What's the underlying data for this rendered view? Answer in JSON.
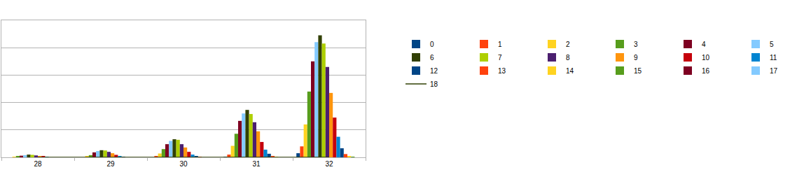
{
  "chart_data": {
    "type": "bar",
    "categories": [
      "28",
      "29",
      "30",
      "31",
      "32"
    ],
    "ylim": [
      0,
      5
    ],
    "yticks": [
      0,
      1,
      2,
      3,
      4,
      5
    ],
    "grid": true,
    "tick_labels": "x",
    "legend": "right",
    "series": [
      {
        "name": "0",
        "color": "#004586",
        "values": [
          0,
          0,
          0,
          0.01,
          0.15
        ]
      },
      {
        "name": "1",
        "color": "#ff420e",
        "values": [
          0,
          0,
          0.03,
          0.1,
          0.4
        ]
      },
      {
        "name": "2",
        "color": "#ffd320",
        "values": [
          0.02,
          0.03,
          0.14,
          0.42,
          1.2
        ]
      },
      {
        "name": "3",
        "color": "#579d1c",
        "values": [
          0.04,
          0.08,
          0.3,
          0.86,
          2.4
        ]
      },
      {
        "name": "4",
        "color": "#7e0021",
        "values": [
          0.06,
          0.18,
          0.48,
          1.33,
          3.5
        ]
      },
      {
        "name": "5",
        "color": "#83caff",
        "values": [
          0.08,
          0.23,
          0.6,
          1.6,
          4.2
        ]
      },
      {
        "name": "6",
        "color": "#314004",
        "values": [
          0.1,
          0.26,
          0.66,
          1.73,
          4.45
        ]
      },
      {
        "name": "7",
        "color": "#aecf00",
        "values": [
          0.09,
          0.25,
          0.64,
          1.58,
          4.15
        ]
      },
      {
        "name": "8",
        "color": "#4b1f6f",
        "values": [
          0.07,
          0.2,
          0.48,
          1.28,
          3.3
        ]
      },
      {
        "name": "9",
        "color": "#ff950e",
        "values": [
          0.05,
          0.15,
          0.36,
          0.95,
          2.35
        ]
      },
      {
        "name": "10",
        "color": "#c5000b",
        "values": [
          0.03,
          0.09,
          0.2,
          0.56,
          1.45
        ]
      },
      {
        "name": "11",
        "color": "#0084d1",
        "values": [
          0.01,
          0.04,
          0.1,
          0.28,
          0.75
        ]
      },
      {
        "name": "12",
        "color": "#004586",
        "values": [
          0,
          0.02,
          0.05,
          0.13,
          0.33
        ]
      },
      {
        "name": "13",
        "color": "#ff420e",
        "values": [
          0,
          0,
          0.02,
          0.04,
          0.12
        ]
      },
      {
        "name": "14",
        "color": "#ffd320",
        "values": [
          0,
          0,
          0,
          0.01,
          0.03
        ]
      },
      {
        "name": "15",
        "color": "#579d1c",
        "values": [
          0,
          0,
          0,
          0,
          0.01
        ]
      },
      {
        "name": "16",
        "color": "#7e0021",
        "values": [
          0,
          0,
          0,
          0,
          0
        ]
      },
      {
        "name": "17",
        "color": "#83caff",
        "values": [
          0,
          0,
          0,
          0,
          0
        ]
      },
      {
        "name": "18",
        "color": "#314004",
        "type": "line",
        "values": [
          0,
          0,
          0,
          0,
          0
        ]
      }
    ]
  }
}
